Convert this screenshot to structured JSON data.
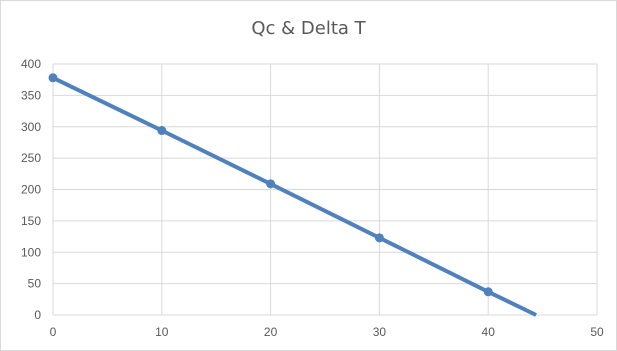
{
  "chart_data": {
    "type": "line",
    "title": "Qc & Delta T",
    "xlabel": "",
    "ylabel": "",
    "xlim": [
      0,
      50
    ],
    "ylim": [
      0,
      400
    ],
    "xticks": [
      0,
      10,
      20,
      30,
      40,
      50
    ],
    "yticks": [
      0,
      50,
      100,
      150,
      200,
      250,
      300,
      350,
      400
    ],
    "grid": true,
    "legend": "none",
    "series": [
      {
        "color": "#4f81bd",
        "points": [
          {
            "x": 0,
            "y": 378
          },
          {
            "x": 10,
            "y": 294
          },
          {
            "x": 20,
            "y": 209
          },
          {
            "x": 30,
            "y": 123
          },
          {
            "x": 40,
            "y": 37
          }
        ],
        "trend_end": {
          "x": 44.4,
          "y": 0
        }
      }
    ]
  }
}
